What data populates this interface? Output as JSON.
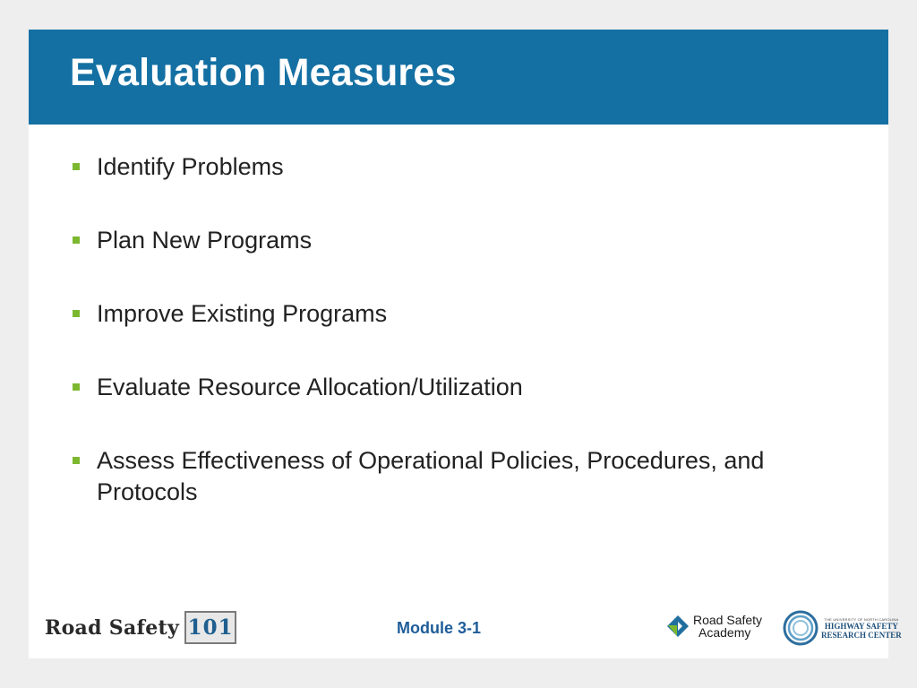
{
  "slide": {
    "title": "Evaluation Measures",
    "bullets": [
      "Identify Problems",
      "Plan New Programs",
      "Improve Existing Programs",
      "Evaluate Resource Allocation/Utilization",
      "Assess Effectiveness of Operational Policies, Procedures, and Protocols"
    ]
  },
  "footer": {
    "left_logo_text": "Road Safety",
    "left_logo_number": "101",
    "module_label": "Module 3-1",
    "academy_line1": "Road Safety",
    "academy_line2": "Academy",
    "hsrc_small": "THE UNIVERSITY OF NORTH CAROLINA",
    "hsrc_line1": "HIGHWAY SAFETY",
    "hsrc_line2": "RESEARCH CENTER"
  },
  "colors": {
    "title_bar": "#1470a3",
    "bullet_marker": "#7cb82f",
    "module_text": "#1f5d99",
    "background": "#eeeeee"
  }
}
